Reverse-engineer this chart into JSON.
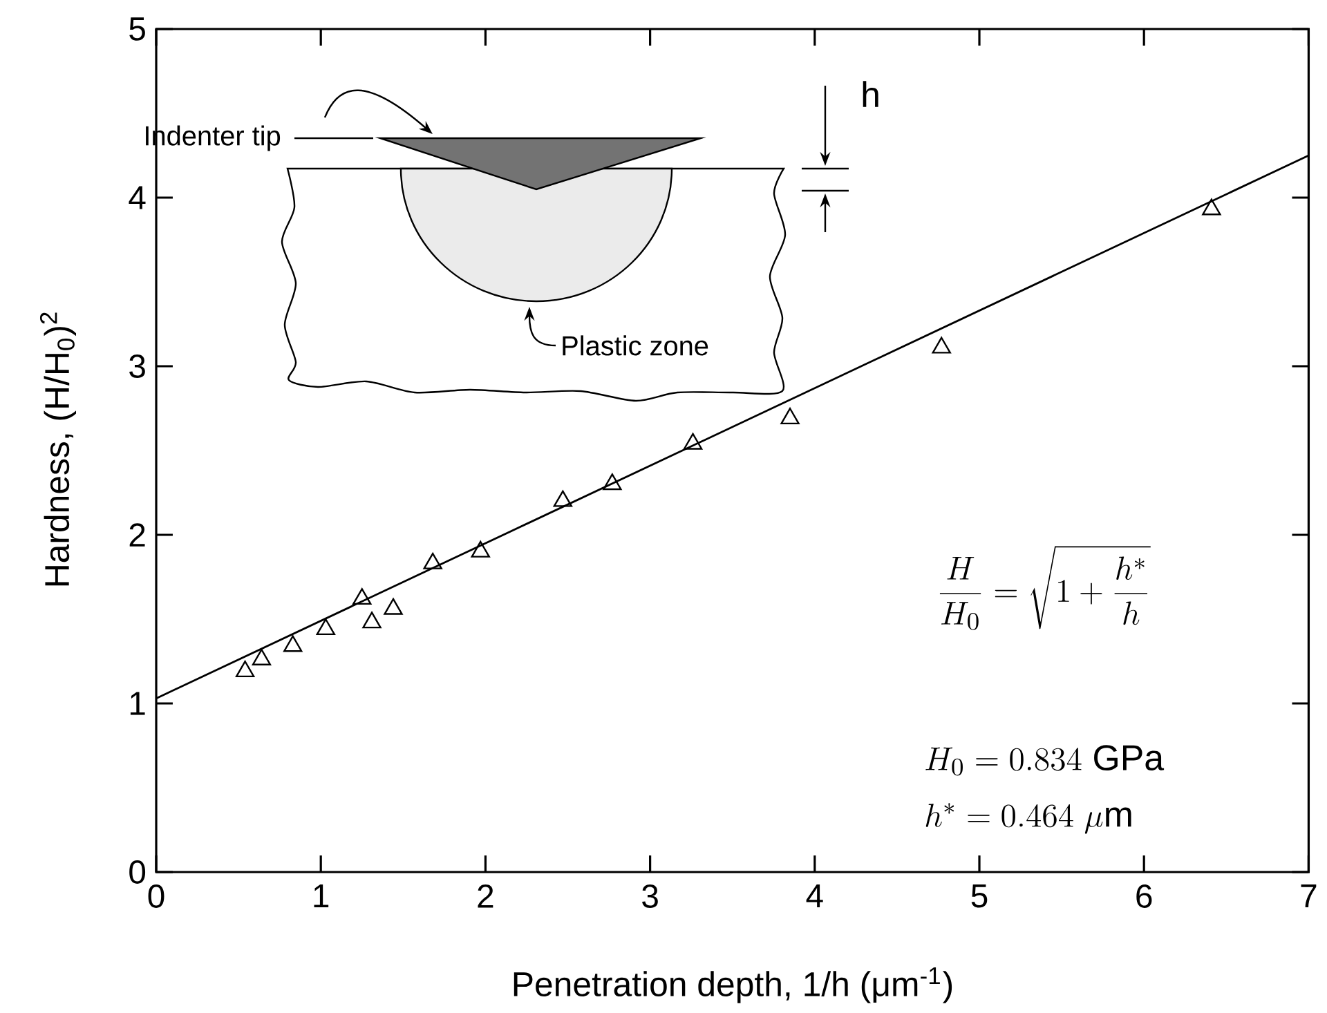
{
  "chart_data": {
    "type": "scatter",
    "xlabel": "Penetration depth, 1/h (μm$^{-1}$)",
    "ylabel": "Hardness, (H/H$_{0}$)$^{2}$",
    "xlim": [
      0,
      7
    ],
    "ylim": [
      0,
      5
    ],
    "xticks": [
      0,
      1,
      2,
      3,
      4,
      5,
      6,
      7
    ],
    "yticks": [
      0,
      1,
      2,
      3,
      4,
      5
    ],
    "marker": "triangle",
    "series": [
      {
        "color": "#000000",
        "x": [
          0.54,
          0.64,
          0.83,
          1.03,
          1.25,
          1.31,
          1.44,
          1.68,
          1.97,
          2.47,
          2.77,
          3.26,
          3.85,
          4.77,
          6.41
        ],
        "values": [
          1.19,
          1.26,
          1.34,
          1.44,
          1.62,
          1.48,
          1.56,
          1.83,
          1.9,
          2.2,
          2.3,
          2.54,
          2.69,
          3.11,
          3.93
        ]
      },
      {
        "type": "line",
        "marker": "none",
        "color": "#000000",
        "x": [
          0,
          7
        ],
        "values": [
          1.03,
          4.25
        ]
      }
    ],
    "annotations": [
      "Indenter tip",
      "Plastic zone",
      "h",
      "\\frac{H}{H_0}=\\sqrt{1+\\frac{h^*}{h}}",
      "H_0=0.834\\ \\mathrm{GPa}",
      "h^*=0.464\\ \\mu\\mathrm{m}"
    ]
  }
}
